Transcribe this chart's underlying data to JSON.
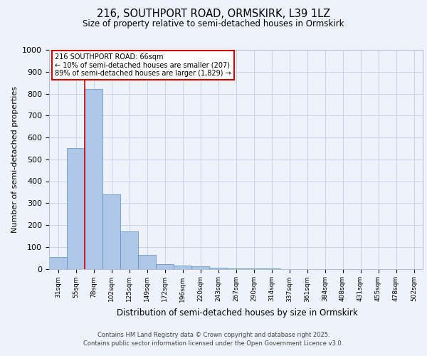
{
  "title_line1": "216, SOUTHPORT ROAD, ORMSKIRK, L39 1LZ",
  "title_line2": "Size of property relative to semi-detached houses in Ormskirk",
  "xlabel": "Distribution of semi-detached houses by size in Ormskirk",
  "ylabel": "Number of semi-detached properties",
  "categories": [
    "31sqm",
    "55sqm",
    "78sqm",
    "102sqm",
    "125sqm",
    "149sqm",
    "172sqm",
    "196sqm",
    "220sqm",
    "243sqm",
    "267sqm",
    "290sqm",
    "314sqm",
    "337sqm",
    "361sqm",
    "384sqm",
    "408sqm",
    "431sqm",
    "455sqm",
    "478sqm",
    "502sqm"
  ],
  "values": [
    55,
    550,
    820,
    340,
    170,
    65,
    20,
    15,
    10,
    5,
    3,
    2,
    1,
    0,
    0,
    0,
    0,
    0,
    0,
    0,
    0
  ],
  "bar_color": "#aec6e8",
  "bar_edge_color": "#5a8fc2",
  "ylim": [
    0,
    1000
  ],
  "yticks": [
    0,
    100,
    200,
    300,
    400,
    500,
    600,
    700,
    800,
    900,
    1000
  ],
  "vline_x_index": 1.48,
  "vline_color": "#cc0000",
  "property_label": "216 SOUTHPORT ROAD: 66sqm",
  "annotation_line1": "← 10% of semi-detached houses are smaller (207)",
  "annotation_line2": "89% of semi-detached houses are larger (1,829) →",
  "annotation_box_color": "#cc0000",
  "bg_color": "#eef2fa",
  "grid_color": "#c8d4e8",
  "footer_line1": "Contains HM Land Registry data © Crown copyright and database right 2025.",
  "footer_line2": "Contains public sector information licensed under the Open Government Licence v3.0."
}
